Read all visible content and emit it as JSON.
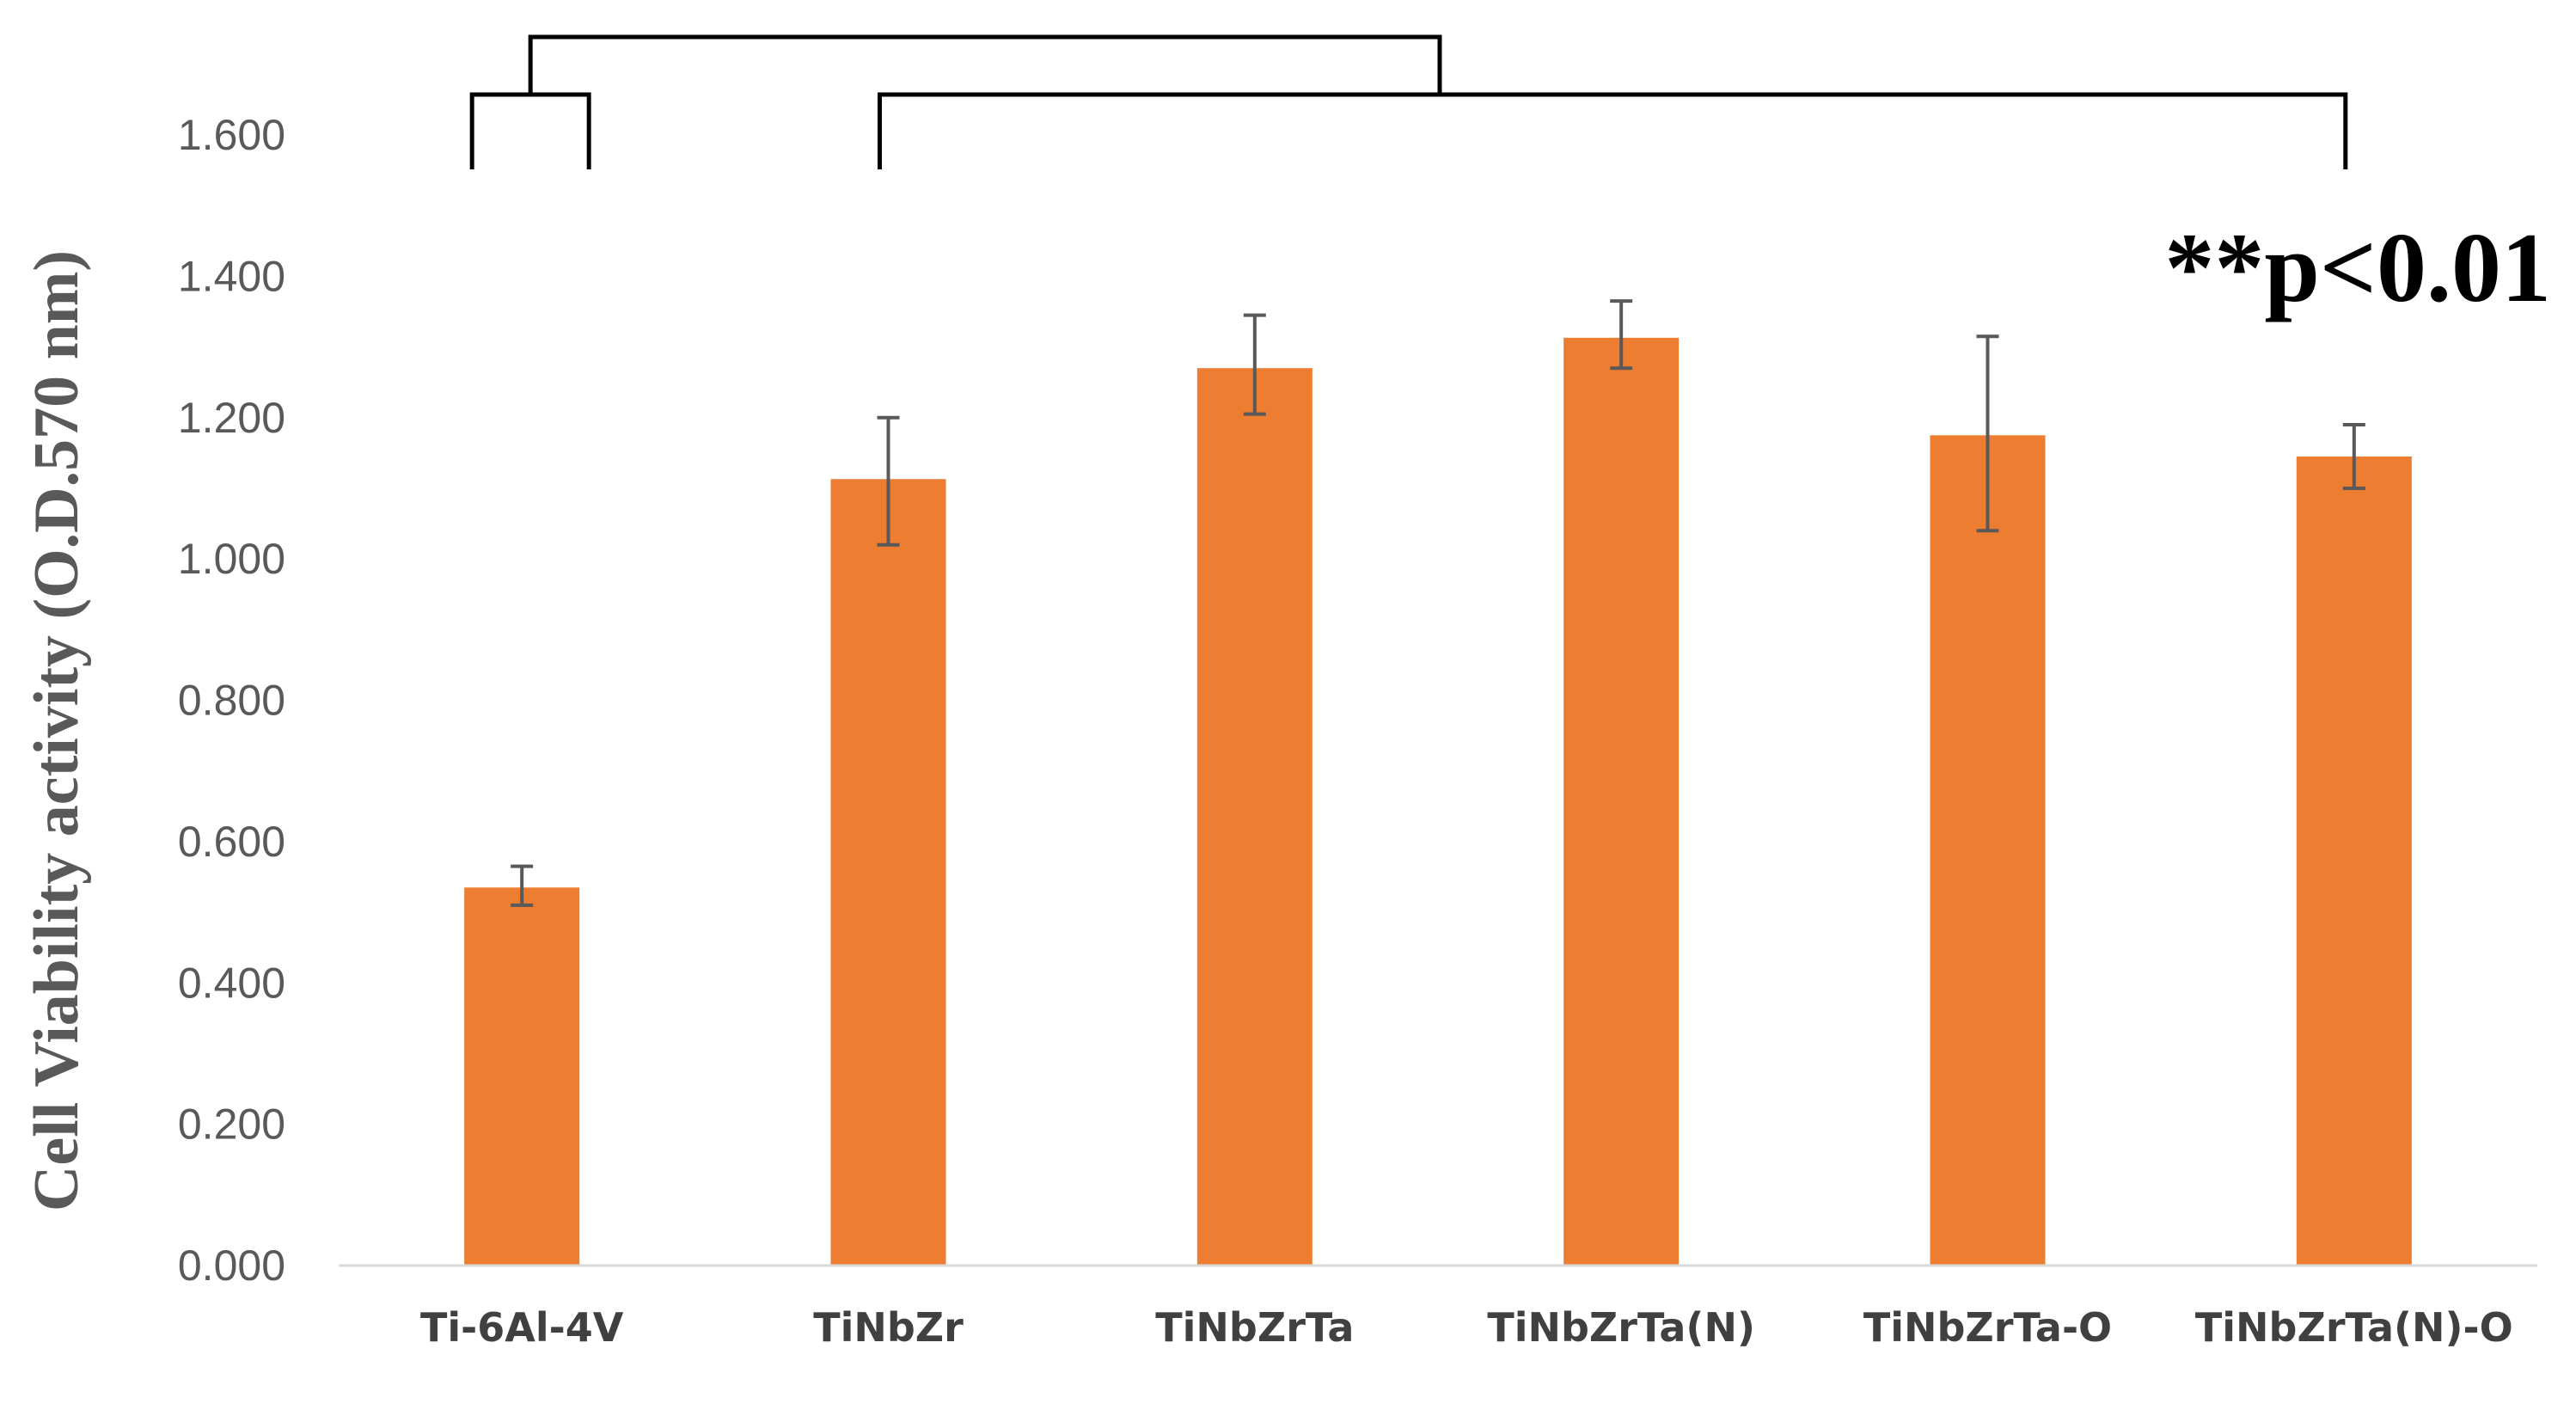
{
  "chart_data": {
    "type": "bar",
    "ylabel": "Cell Viability activity (O.D.570 nm)",
    "xlabel": "",
    "ylim": [
      0,
      1.6
    ],
    "yticks": [
      "0.000",
      "0.200",
      "0.400",
      "0.600",
      "0.800",
      "1.000",
      "1.200",
      "1.400",
      "1.600"
    ],
    "categories": [
      "Ti-6Al-4V",
      "TiNbZr",
      "TiNbZrTa",
      "TiNbZrTa(N)",
      "TiNbZrTa-O",
      "TiNbZrTa(N)-O"
    ],
    "values": [
      0.535,
      1.113,
      1.27,
      1.313,
      1.175,
      1.145
    ],
    "error_low": [
      0.51,
      1.02,
      1.205,
      1.27,
      1.04,
      1.1
    ],
    "error_high": [
      0.565,
      1.2,
      1.345,
      1.365,
      1.315,
      1.19
    ],
    "bar_color": "#ED7D31",
    "error_color": "#595959",
    "grid": false,
    "legend": "none",
    "annotation": "**p<0.01",
    "significance_brackets": [
      {
        "left_group": [
          0,
          0
        ],
        "right_group": [
          1,
          5
        ]
      }
    ]
  }
}
